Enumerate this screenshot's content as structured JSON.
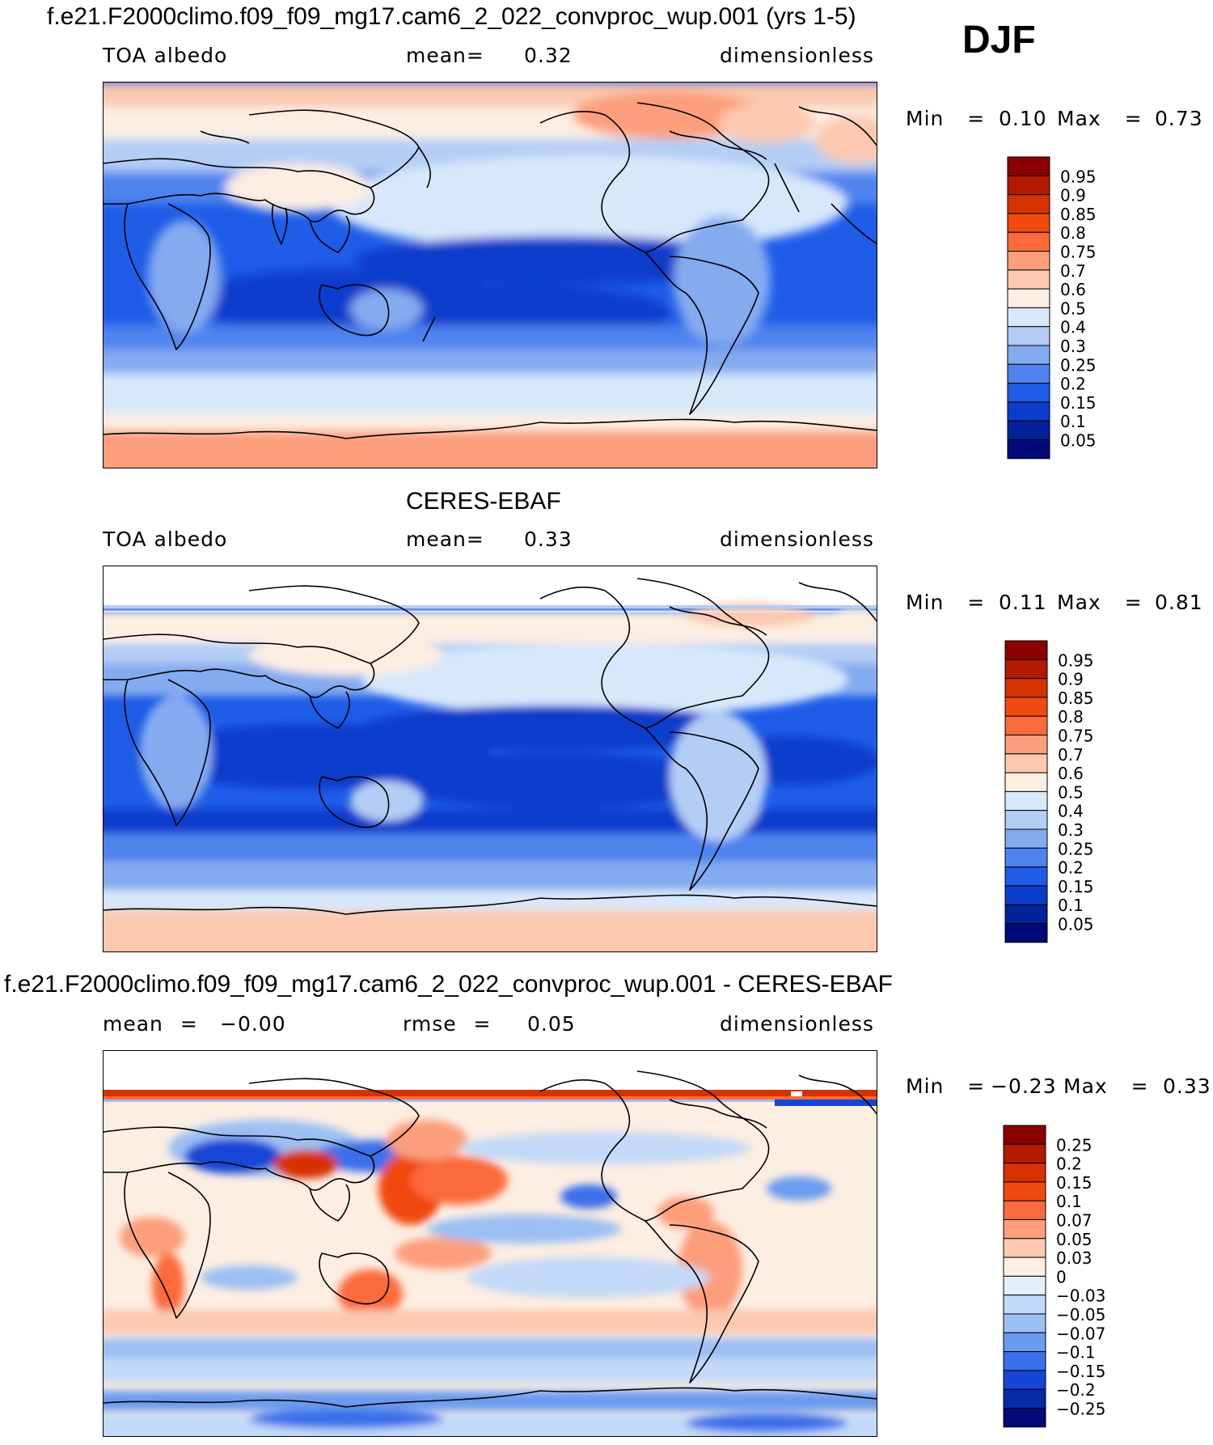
{
  "season": "DJF",
  "panels": [
    {
      "title": "f.e21.F2000climo.f09_f09_mg17.cam6_2_022_convproc_wup.001 (yrs 1-5)",
      "variable": "TOA albedo",
      "stat_label": "mean=",
      "stat_value": "0.32",
      "units": "dimensionless",
      "min_label": "Min =",
      "min_value": "0.10",
      "max_label": "Max =",
      "max_value": "0.73",
      "colorbar": {
        "labels": [
          "0.95",
          "0.9",
          "0.85",
          "0.8",
          "0.75",
          "0.7",
          "0.6",
          "0.5",
          "0.4",
          "0.3",
          "0.25",
          "0.2",
          "0.15",
          "0.1",
          "0.05"
        ],
        "colors": [
          "#8b0000",
          "#b31a00",
          "#d63300",
          "#f04a10",
          "#fb6a3a",
          "#fc9e7c",
          "#fcc9b0",
          "#fdeee2",
          "#d7e8fa",
          "#b3cdf5",
          "#84aaf0",
          "#4f83ee",
          "#1f5de8",
          "#0b3dcc",
          "#03229c",
          "#000a78"
        ]
      }
    },
    {
      "title": "CERES-EBAF",
      "variable": "TOA albedo",
      "stat_label": "mean=",
      "stat_value": "0.33",
      "units": "dimensionless",
      "min_label": "Min =",
      "min_value": "0.11",
      "max_label": "Max =",
      "max_value": "0.81",
      "colorbar": {
        "labels": [
          "0.95",
          "0.9",
          "0.85",
          "0.8",
          "0.75",
          "0.7",
          "0.6",
          "0.5",
          "0.4",
          "0.3",
          "0.25",
          "0.2",
          "0.15",
          "0.1",
          "0.05"
        ],
        "colors": [
          "#8b0000",
          "#b31a00",
          "#d63300",
          "#f04a10",
          "#fb6a3a",
          "#fc9e7c",
          "#fcc9b0",
          "#fdeee2",
          "#d7e8fa",
          "#b3cdf5",
          "#84aaf0",
          "#4f83ee",
          "#1f5de8",
          "#0b3dcc",
          "#03229c",
          "#000a78"
        ]
      }
    },
    {
      "title": "f.e21.F2000climo.f09_f09_mg17.cam6_2_022_convproc_wup.001 - CERES-EBAF",
      "variable": "mean =",
      "stat_label": "rmse =",
      "stat_value": "0.05",
      "mean_value": "−0.00",
      "units": "dimensionless",
      "min_label": "Min =",
      "min_value": "−0.23",
      "max_label": "Max =",
      "max_value": "0.33",
      "colorbar": {
        "labels": [
          "0.25",
          "0.2",
          "0.15",
          "0.1",
          "0.07",
          "0.05",
          "0.03",
          "0",
          "−0.03",
          "−0.05",
          "−0.07",
          "−0.1",
          "−0.15",
          "−0.2",
          "−0.25"
        ],
        "colors": [
          "#8b0000",
          "#b31a00",
          "#d63300",
          "#f04a10",
          "#fb6a3a",
          "#fc9e7c",
          "#fcc9b0",
          "#fdeee2",
          "#e3effb",
          "#c2d9f7",
          "#9cbff3",
          "#6b9bef",
          "#3a70ea",
          "#1447d6",
          "#052aa8",
          "#000a78"
        ]
      }
    }
  ]
}
